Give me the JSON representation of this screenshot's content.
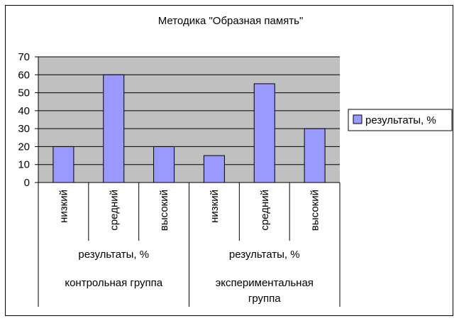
{
  "chart_data": {
    "type": "bar",
    "title": "Методика \"Образная память\"",
    "xlabel": "",
    "ylabel": "",
    "ylim": [
      0,
      70
    ],
    "yticks": [
      0,
      10,
      20,
      30,
      40,
      50,
      60,
      70
    ],
    "grid": true,
    "legend_position": "right",
    "categories": [
      "низкий",
      "средний",
      "высокий",
      "низкий",
      "средний",
      "высокий"
    ],
    "category_groups": [
      {
        "label": "результаты, %",
        "group": "контрольная группа",
        "span": 3
      },
      {
        "label": "результаты, %",
        "group": "экспериментальная группа",
        "span": 3
      }
    ],
    "group_label_lines": [
      [
        "контрольная группа"
      ],
      [
        "экспериментальная",
        "группа"
      ]
    ],
    "series": [
      {
        "name": "результаты, %",
        "values": [
          20,
          60,
          20,
          15,
          55,
          30
        ]
      }
    ],
    "colors": {
      "bar_fill": "#9999ff",
      "bar_stroke": "#000000",
      "plot_bg": "#c0c0c0",
      "gridline": "#000000"
    }
  }
}
